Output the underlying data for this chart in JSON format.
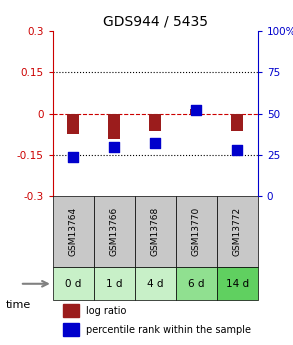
{
  "title": "GDS944 / 5435",
  "samples": [
    "GSM13764",
    "GSM13766",
    "GSM13768",
    "GSM13770",
    "GSM13772"
  ],
  "time_labels": [
    "0 d",
    "1 d",
    "4 d",
    "6 d",
    "14 d"
  ],
  "log_ratios": [
    -0.072,
    -0.092,
    -0.062,
    0.018,
    -0.062
  ],
  "percentile_ranks": [
    24,
    30,
    32,
    52,
    28
  ],
  "ylim": [
    -0.3,
    0.3
  ],
  "y2lim": [
    0,
    100
  ],
  "yticks": [
    -0.3,
    -0.15,
    0,
    0.15,
    0.3
  ],
  "ytick_labels": [
    "-0.3",
    "-0.15",
    "0",
    "0.15",
    "0.3"
  ],
  "y2ticks": [
    0,
    25,
    50,
    75,
    100
  ],
  "y2tick_labels": [
    "0",
    "25",
    "50",
    "75",
    "100%"
  ],
  "hline_y": [
    -0.15,
    0,
    0.15
  ],
  "bar_color": "#9B1C1C",
  "dot_color": "#0000CC",
  "bar_width": 0.3,
  "dot_size": 60,
  "sample_bg_color": "#C8C8C8",
  "time_bg_colors": [
    "#C8F0C8",
    "#C8F0C8",
    "#C8F0C8",
    "#90E090",
    "#60D060"
  ],
  "time_arrow_color": "#808080",
  "legend_bar_color": "#9B1C1C",
  "legend_dot_color": "#0000CC",
  "legend_text1": "log ratio",
  "legend_text2": "percentile rank within the sample",
  "grid_color": "#000000",
  "hline_zero_color": "#CC0000",
  "hline_dotted_color": "#000000"
}
